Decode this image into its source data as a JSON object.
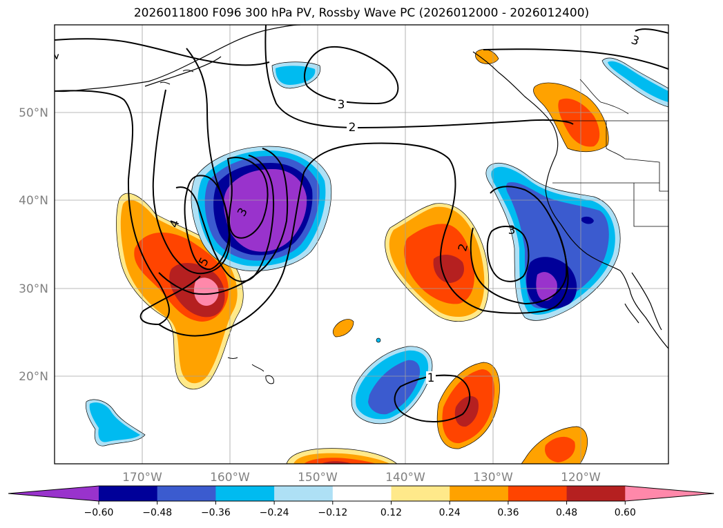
{
  "title": "2026011800 F096 300 hPa PV, Rossby Wave PC (2026012000 - 2026012400)",
  "map": {
    "projection": "plate-carree",
    "lon_range": [
      -180,
      -110
    ],
    "lat_range": [
      10,
      60
    ],
    "gridlines": true,
    "lon_labels": [
      "170°W",
      "160°W",
      "150°W",
      "140°W",
      "130°W",
      "120°W"
    ],
    "lat_labels": [
      "20°N",
      "30°N",
      "40°N",
      "50°N"
    ],
    "colors": {
      "land_border": "#000000",
      "grid": "#a0a0a0"
    }
  },
  "contours": {
    "field": "300 hPa PV",
    "labels": [
      "2",
      "3",
      "3",
      "2",
      "4",
      "5",
      "3",
      "2",
      "3",
      "1"
    ]
  },
  "colorbar": {
    "levels": [
      "−0.60",
      "−0.48",
      "−0.36",
      "−0.24",
      "−0.12",
      "0.12",
      "0.24",
      "0.36",
      "0.48",
      "0.60"
    ],
    "colors": [
      "#9933cc",
      "#000099",
      "#3b5bcf",
      "#00bbf0",
      "#aee0f5",
      "#ffffff",
      "#ffe98a",
      "#ffa200",
      "#ff4400",
      "#b52020",
      "#ff88aa"
    ]
  }
}
